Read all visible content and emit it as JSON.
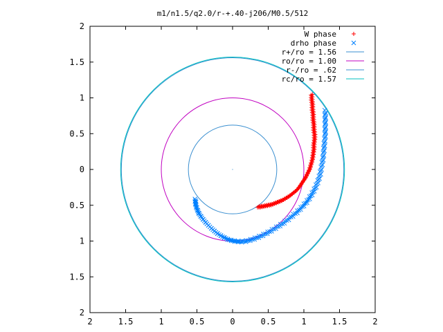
{
  "chart_data": {
    "type": "scatter",
    "title": "m1/n1.5/q2.0/r-+.40-j206/M0.5/512",
    "xlim": [
      -2,
      2
    ],
    "ylim": [
      -2,
      2
    ],
    "xticks": [
      "2",
      "1.5",
      "1",
      "0.5",
      "0",
      "0.5",
      "1",
      "1.5",
      "2"
    ],
    "yticks": [
      "2",
      "1.5",
      "1",
      "0.5",
      "0",
      "0.5",
      "1",
      "1.5",
      "2"
    ],
    "grid": false,
    "legend_position": "top-right",
    "colors": {
      "w_phase": "#ff0000",
      "drho_phase": "#0080ff",
      "r_plus": "#3a8fd0",
      "r_o": "#c000c0",
      "r_minus": "#3a8fd0",
      "r_c": "#00c0c0"
    },
    "series": [
      {
        "name": "W phase",
        "marker": "+",
        "points": [
          [
            0.36,
            -0.52
          ],
          [
            0.4,
            -0.52
          ],
          [
            0.45,
            -0.51
          ],
          [
            0.5,
            -0.5
          ],
          [
            0.55,
            -0.49
          ],
          [
            0.6,
            -0.47
          ],
          [
            0.65,
            -0.45
          ],
          [
            0.7,
            -0.43
          ],
          [
            0.75,
            -0.4
          ],
          [
            0.8,
            -0.37
          ],
          [
            0.85,
            -0.33
          ],
          [
            0.9,
            -0.29
          ],
          [
            0.94,
            -0.24
          ],
          [
            0.98,
            -0.18
          ],
          [
            1.02,
            -0.12
          ],
          [
            1.05,
            -0.06
          ],
          [
            1.08,
            0.0
          ],
          [
            1.1,
            0.07
          ],
          [
            1.12,
            0.14
          ],
          [
            1.13,
            0.21
          ],
          [
            1.14,
            0.28
          ],
          [
            1.14,
            0.35
          ],
          [
            1.15,
            0.42
          ],
          [
            1.15,
            0.49
          ],
          [
            1.14,
            0.56
          ],
          [
            1.14,
            0.63
          ],
          [
            1.13,
            0.7
          ],
          [
            1.13,
            0.77
          ],
          [
            1.12,
            0.84
          ],
          [
            1.12,
            0.91
          ],
          [
            1.11,
            0.98
          ],
          [
            1.11,
            1.05
          ]
        ]
      },
      {
        "name": "drho phase",
        "marker": "x",
        "points": [
          [
            -0.52,
            -0.42
          ],
          [
            -0.52,
            -0.48
          ],
          [
            -0.5,
            -0.55
          ],
          [
            -0.47,
            -0.62
          ],
          [
            -0.42,
            -0.69
          ],
          [
            -0.36,
            -0.76
          ],
          [
            -0.29,
            -0.83
          ],
          [
            -0.22,
            -0.89
          ],
          [
            -0.14,
            -0.94
          ],
          [
            -0.06,
            -0.98
          ],
          [
            0.02,
            -1.0
          ],
          [
            0.1,
            -1.01
          ],
          [
            0.2,
            -1.0
          ],
          [
            0.3,
            -0.97
          ],
          [
            0.4,
            -0.93
          ],
          [
            0.5,
            -0.88
          ],
          [
            0.6,
            -0.82
          ],
          [
            0.7,
            -0.76
          ],
          [
            0.8,
            -0.68
          ],
          [
            0.9,
            -0.6
          ],
          [
            0.98,
            -0.52
          ],
          [
            1.05,
            -0.44
          ],
          [
            1.11,
            -0.35
          ],
          [
            1.16,
            -0.26
          ],
          [
            1.2,
            -0.16
          ],
          [
            1.23,
            -0.06
          ],
          [
            1.25,
            0.05
          ],
          [
            1.27,
            0.16
          ],
          [
            1.28,
            0.27
          ],
          [
            1.29,
            0.38
          ],
          [
            1.3,
            0.49
          ],
          [
            1.3,
            0.6
          ],
          [
            1.3,
            0.71
          ],
          [
            1.3,
            0.82
          ]
        ]
      },
      {
        "name": "r+/ro = 1.56",
        "radius": 1.56,
        "type": "circle"
      },
      {
        "name": "ro/ro = 1.00",
        "radius": 1.0,
        "type": "circle"
      },
      {
        "name": "r-/ro = .62",
        "radius": 0.62,
        "type": "circle"
      },
      {
        "name": "rc/ro = 1.57",
        "radius": 1.57,
        "type": "circle"
      }
    ]
  }
}
